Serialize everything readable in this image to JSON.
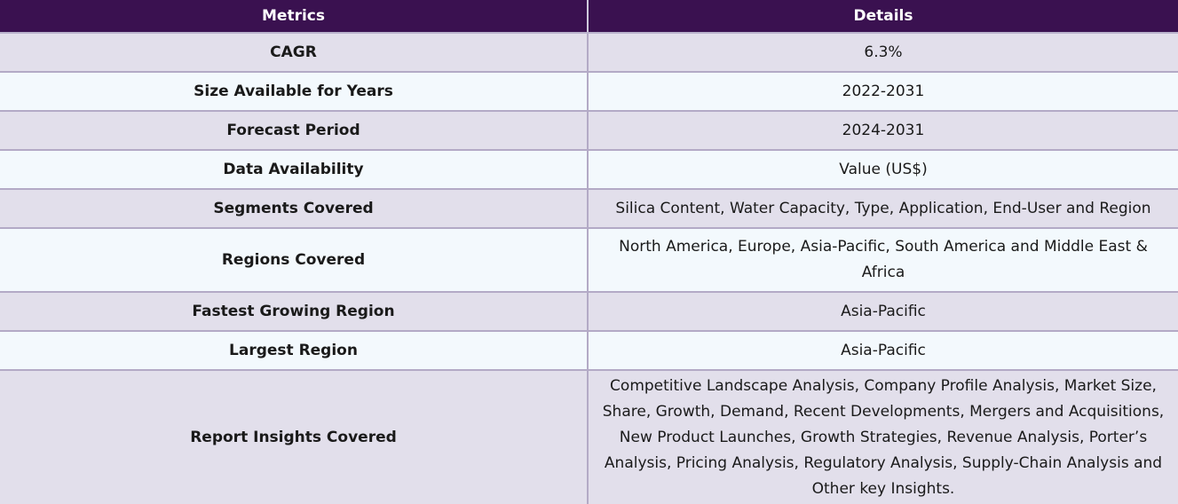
{
  "table": {
    "headers": [
      "Metrics",
      "Details"
    ],
    "rows": [
      {
        "metric": "CAGR",
        "details": "6.3%"
      },
      {
        "metric": "Size Available for Years",
        "details": "2022-2031"
      },
      {
        "metric": "Forecast Period",
        "details": "2024-2031"
      },
      {
        "metric": "Data Availability",
        "details": "Value (US$)"
      },
      {
        "metric": "Segments Covered",
        "details": "Silica Content, Water Capacity, Type, Application, End-User and Region"
      },
      {
        "metric": "Regions Covered",
        "details": "North America, Europe, Asia-Pacific, South America and Middle East & Africa"
      },
      {
        "metric": "Fastest Growing Region",
        "details": "Asia-Pacific"
      },
      {
        "metric": "Largest Region",
        "details": "Asia-Pacific"
      },
      {
        "metric": "Report Insights Covered",
        "details": "Competitive Landscape Analysis, Company Profile Analysis, Market Size, Share, Growth, Demand, Recent Developments, Mergers and Acquisitions, New Product Launches, Growth Strategies, Revenue Analysis, Porter’s Analysis, Pricing Analysis, Regulatory Analysis, Supply-Chain Analysis and Other key Insights."
      }
    ]
  },
  "colors": {
    "header_bg": "#3a1150",
    "row_odd": "#e2dfeb",
    "row_even": "#f3f9fd",
    "border": "#b3aac6"
  }
}
